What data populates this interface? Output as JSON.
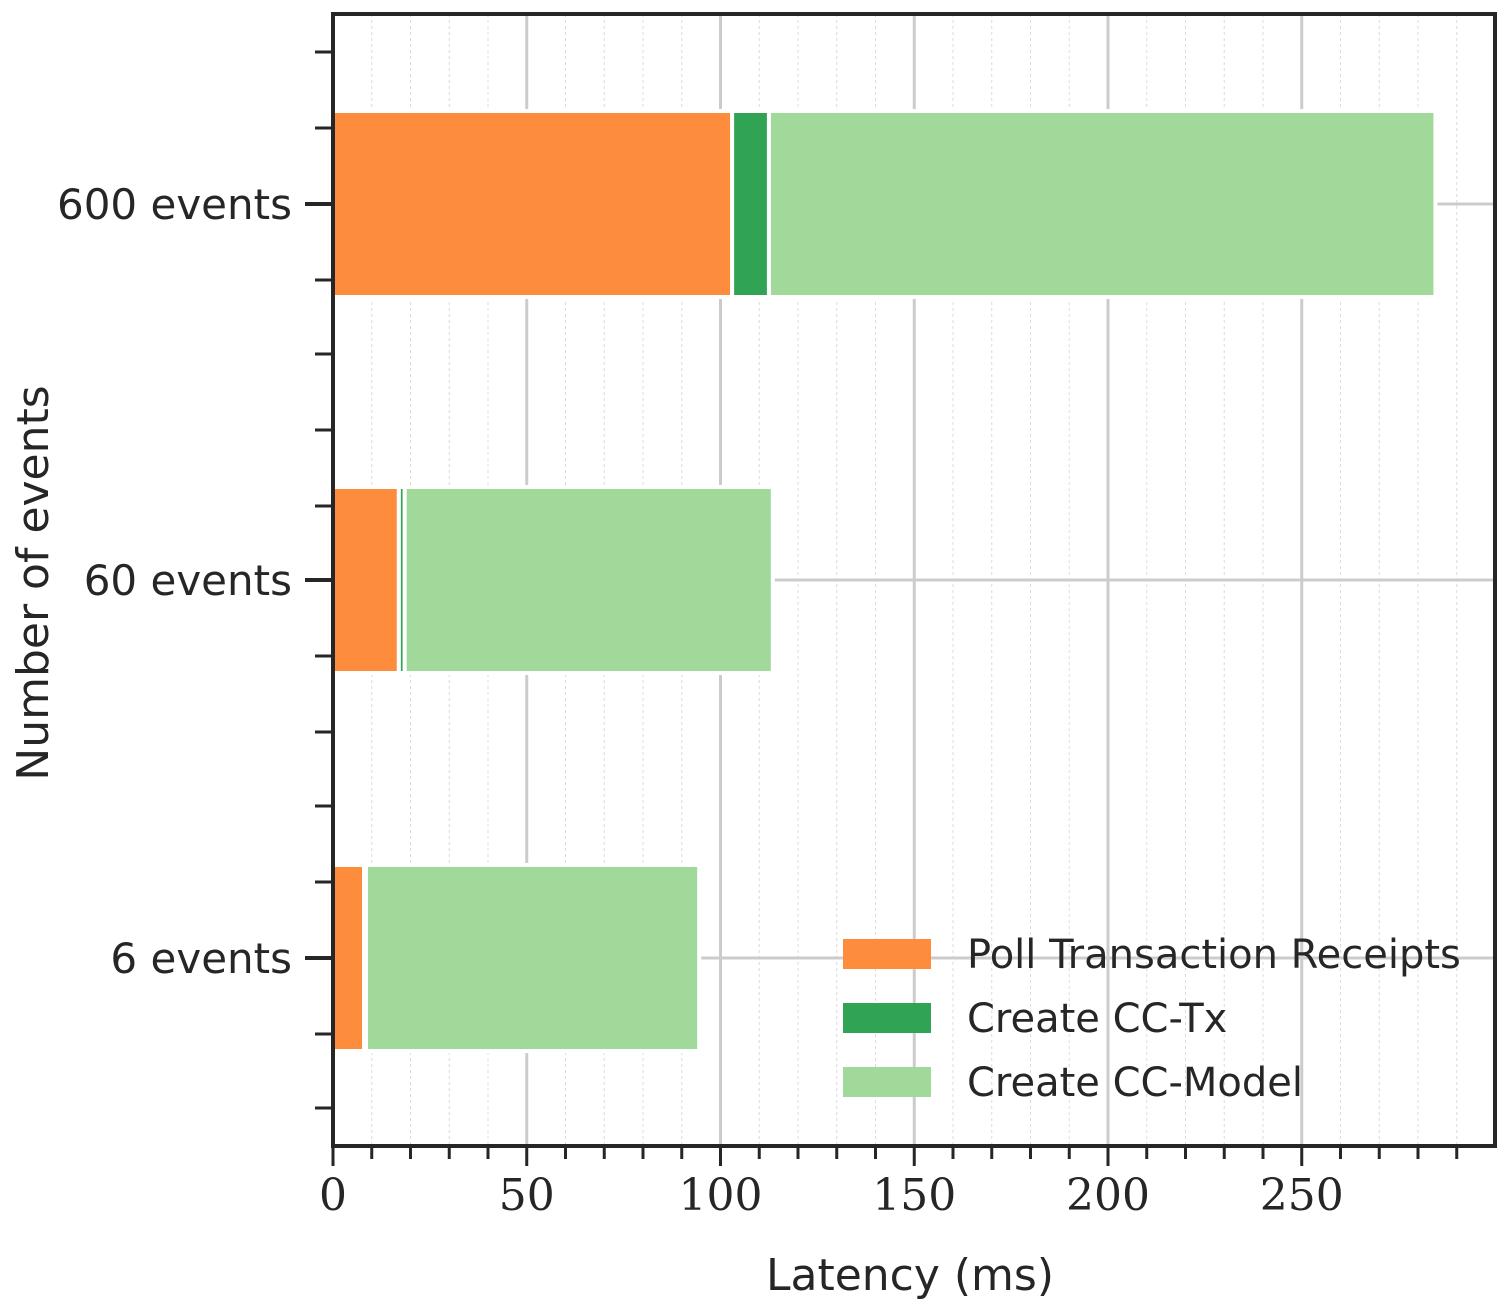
{
  "chart_data": {
    "type": "bar",
    "orientation": "horizontal",
    "stacked": true,
    "categories": [
      "600 events",
      "60 events",
      "6 events"
    ],
    "series": [
      {
        "name": "Poll Transaction Receipts",
        "color": "#fd8d3c",
        "values": [
          103,
          17,
          8
        ]
      },
      {
        "name": "Create CC-Tx",
        "color": "#31a354",
        "values": [
          9.5,
          1.5,
          0.5
        ]
      },
      {
        "name": "Create CC-Model",
        "color": "#a1d99b",
        "values": [
          172,
          95,
          86
        ]
      }
    ],
    "xlabel": "Latency (ms)",
    "ylabel": "Number of events",
    "xlim": [
      0,
      300
    ],
    "x_ticks": [
      "0",
      "50",
      "100",
      "150",
      "200",
      "250"
    ],
    "x_tick_values": [
      0,
      50,
      100,
      150,
      200,
      250
    ],
    "grid": true,
    "legend_position": "lower-right"
  }
}
